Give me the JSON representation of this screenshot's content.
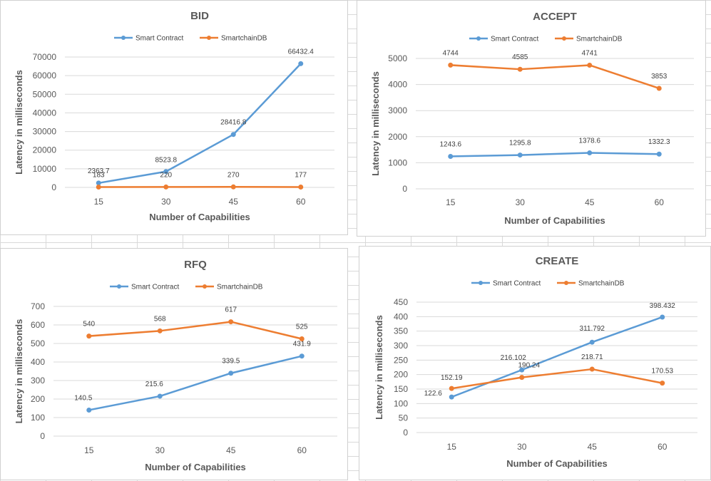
{
  "colors": {
    "smart_contract": "#5b9bd5",
    "smartchaindb": "#ed7d31"
  },
  "chart_data": [
    {
      "id": "bid",
      "type": "line",
      "title": "BID",
      "xlabel": "Number of Capabilities",
      "ylabel": "Latency in milliseconds",
      "categories": [
        "15",
        "30",
        "45",
        "60"
      ],
      "ylim": [
        0,
        70000
      ],
      "yticks": [
        0,
        10000,
        20000,
        30000,
        40000,
        50000,
        60000,
        70000
      ],
      "series": [
        {
          "name": "Smart Contract",
          "values": [
            2363.7,
            8523.8,
            28416.8,
            66432.4
          ],
          "labels": [
            "2363.7",
            "8523.8",
            "28416.8",
            "66432.4"
          ]
        },
        {
          "name": "SmartchainDB",
          "values": [
            183,
            220,
            270,
            177
          ],
          "labels": [
            "183",
            "220",
            "270",
            "177"
          ]
        }
      ],
      "legend_position": "top",
      "grid": true
    },
    {
      "id": "accept",
      "type": "line",
      "title": "ACCEPT",
      "xlabel": "Number of Capabilities",
      "ylabel": "Latency in milliseconds",
      "categories": [
        "15",
        "30",
        "45",
        "60"
      ],
      "ylim": [
        0,
        5000
      ],
      "yticks": [
        0,
        1000,
        2000,
        3000,
        4000,
        5000
      ],
      "series": [
        {
          "name": "Smart Contract",
          "values": [
            1243.6,
            1295.8,
            1378.6,
            1332.3
          ],
          "labels": [
            "1243.6",
            "1295.8",
            "1378.6",
            "1332.3"
          ]
        },
        {
          "name": "SmartchainDB",
          "values": [
            4744,
            4585,
            4741,
            3853
          ],
          "labels": [
            "4744",
            "4585",
            "4741",
            "3853"
          ]
        }
      ],
      "legend_position": "top",
      "grid": true
    },
    {
      "id": "rfq",
      "type": "line",
      "title": "RFQ",
      "xlabel": "Number of Capabilities",
      "ylabel": "Latency in milliseconds",
      "categories": [
        "15",
        "30",
        "45",
        "60"
      ],
      "ylim": [
        0,
        700
      ],
      "yticks": [
        0,
        100,
        200,
        300,
        400,
        500,
        600,
        700
      ],
      "series": [
        {
          "name": "Smart Contract",
          "values": [
            140.5,
            215.6,
            339.5,
            431.9
          ],
          "labels": [
            "140.5",
            "215.6",
            "339.5",
            "431.9"
          ]
        },
        {
          "name": "SmartchainDB",
          "values": [
            540,
            568,
            617,
            525
          ],
          "labels": [
            "540",
            "568",
            "617",
            "525"
          ]
        }
      ],
      "legend_position": "top",
      "grid": true
    },
    {
      "id": "create",
      "type": "line",
      "title": "CREATE",
      "xlabel": "Number of Capabilities",
      "ylabel": "Latency in milliseconds",
      "categories": [
        "15",
        "30",
        "45",
        "60"
      ],
      "ylim": [
        0,
        450
      ],
      "yticks": [
        0,
        50,
        100,
        150,
        200,
        250,
        300,
        350,
        400,
        450
      ],
      "series": [
        {
          "name": "Smart Contract",
          "values": [
            122.6,
            216.102,
            311.792,
            398.432
          ],
          "labels": [
            "122.6",
            "216.102",
            "311.792",
            "398.432"
          ]
        },
        {
          "name": "SmartchainDB",
          "values": [
            152.19,
            190.24,
            218.71,
            170.53
          ],
          "labels": [
            "152.19",
            "190.24",
            "218.71",
            "170.53"
          ]
        }
      ],
      "legend_position": "top",
      "grid": true
    }
  ]
}
